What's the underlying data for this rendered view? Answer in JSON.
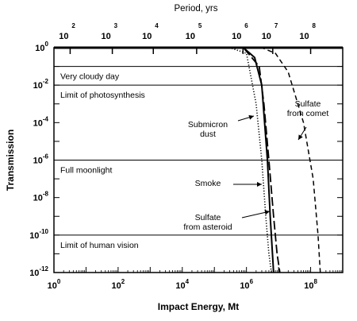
{
  "chart_data": {
    "type": "line",
    "xlabel": "Impact Energy, Mt",
    "ylabel": "Transmission",
    "top_axis_label": "Period, yrs",
    "xscale": "log",
    "yscale": "log",
    "xlim": [
      1,
      1000000000
    ],
    "ylim": [
      1e-12,
      1
    ],
    "x_ticks": [
      {
        "base": "10",
        "exp": "0",
        "value": 1
      },
      {
        "base": "10",
        "exp": "2",
        "value": 100
      },
      {
        "base": "10",
        "exp": "4",
        "value": 10000
      },
      {
        "base": "10",
        "exp": "6",
        "value": 1000000
      },
      {
        "base": "10",
        "exp": "8",
        "value": 100000000
      }
    ],
    "y_ticks": [
      {
        "base": "10",
        "exp": "0",
        "value": 1
      },
      {
        "base": "10",
        "exp": "-2",
        "value": 0.01
      },
      {
        "base": "10",
        "exp": "-4",
        "value": 0.0001
      },
      {
        "base": "10",
        "exp": "-6",
        "value": 1e-06
      },
      {
        "base": "10",
        "exp": "-8",
        "value": 1e-08
      },
      {
        "base": "10",
        "exp": "-10",
        "value": 1e-10
      },
      {
        "base": "10",
        "exp": "-12",
        "value": 1e-12
      }
    ],
    "top_ticks": [
      {
        "base": "10",
        "exp": "2",
        "energy": 3.2
      },
      {
        "base": "10",
        "exp": "3",
        "energy": 66
      },
      {
        "base": "10",
        "exp": "4",
        "energy": 1250
      },
      {
        "base": "10",
        "exp": "5",
        "energy": 28000
      },
      {
        "base": "10",
        "exp": "6",
        "energy": 780000
      },
      {
        "base": "10",
        "exp": "7",
        "energy": 6600000
      },
      {
        "base": "10",
        "exp": "8",
        "energy": 100000000
      }
    ],
    "reference_lines": [
      {
        "label": "Very cloudy day",
        "y": 0.1
      },
      {
        "label": "Limit of photosynthesis",
        "y": 0.01
      },
      {
        "label": "Full moonlight",
        "y": 1e-06
      },
      {
        "label": "Limit of human vision",
        "y": 1e-10
      }
    ],
    "series": [
      {
        "name": "Submicron dust",
        "style": "dotted",
        "x": [
          1,
          300000,
          1000000,
          2000000,
          3000000,
          4000000,
          5000000,
          6000000
        ],
        "y": [
          1,
          1,
          0.5,
          0.001,
          1e-06,
          1e-09,
          1e-11,
          1e-12
        ]
      },
      {
        "name": "Smoke",
        "style": "solid",
        "x": [
          1,
          800000,
          1800000,
          3000000,
          4500000,
          5500000,
          7000000
        ],
        "y": [
          1,
          1,
          0.3,
          0.01,
          1e-06,
          1e-09,
          1e-12
        ]
      },
      {
        "name": "Sulfate from asteroid",
        "style": "long-dash",
        "x": [
          1,
          800000,
          2500000,
          3500000,
          5000000,
          7000000,
          9000000,
          11000000
        ],
        "y": [
          1,
          1,
          0.1,
          0.001,
          1e-06,
          1e-09,
          1e-11,
          1e-12
        ]
      },
      {
        "name": "Sulfate from comet",
        "style": "dashed",
        "x": [
          1,
          3000000,
          8000000,
          20000000,
          60000000,
          120000000,
          170000000,
          200000000
        ],
        "y": [
          1,
          1,
          0.5,
          0.05,
          0.0001,
          1e-07,
          1e-10,
          1e-12
        ]
      }
    ],
    "annotations": [
      {
        "lines": [
          "Submicron",
          "dust"
        ]
      },
      {
        "lines": [
          "Smoke"
        ]
      },
      {
        "lines": [
          "Sulfate",
          "from asteroid"
        ]
      },
      {
        "lines": [
          "Sulfate",
          "from comet"
        ]
      }
    ]
  }
}
